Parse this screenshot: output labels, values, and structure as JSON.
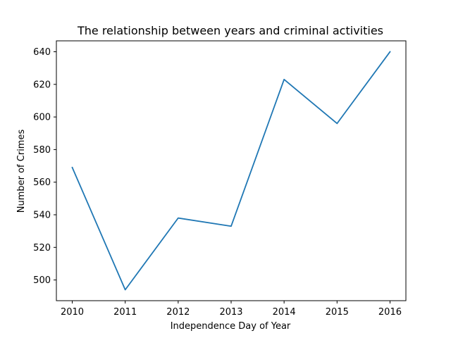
{
  "chart_data": {
    "type": "line",
    "title": "The relationship between years and criminal activities",
    "xlabel": "Independence Day of Year",
    "ylabel": "Number of Crimes",
    "x": [
      2010,
      2011,
      2012,
      2013,
      2014,
      2015,
      2016
    ],
    "series": [
      {
        "values": [
          569,
          494,
          538,
          533,
          623,
          596,
          640
        ],
        "color": "#1f77b4"
      }
    ],
    "xlim": [
      2009.7,
      2016.3
    ],
    "ylim": [
      487.3,
      646.7
    ],
    "xticks": [
      2010,
      2011,
      2012,
      2013,
      2014,
      2015,
      2016
    ],
    "yticks": [
      500,
      520,
      540,
      560,
      580,
      600,
      620,
      640
    ],
    "grid": false,
    "legend": false
  }
}
